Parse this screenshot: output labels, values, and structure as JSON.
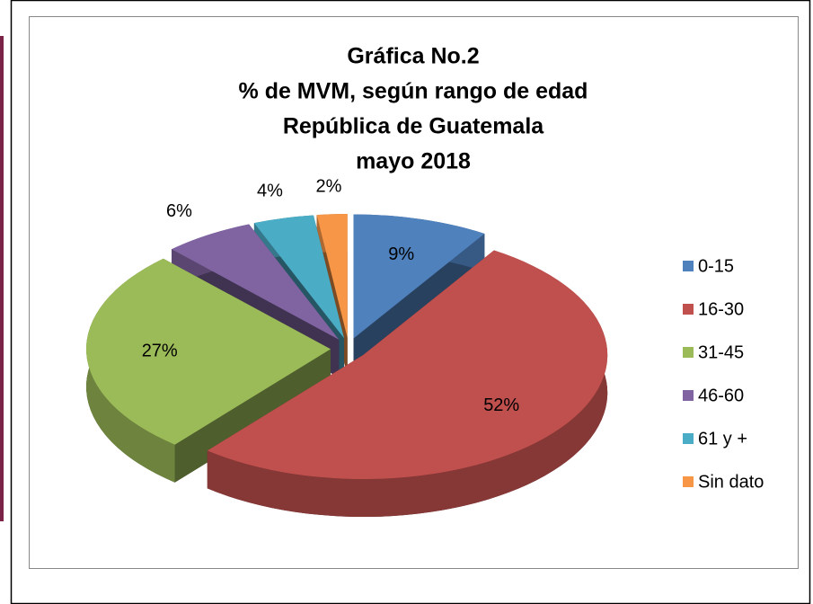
{
  "chart_data": {
    "type": "pie",
    "title": [
      "Gráfica No.2",
      "% de MVM, según rango de edad",
      "República de Guatemala",
      "mayo 2018"
    ],
    "categories": [
      "0-15",
      "16-30",
      "31-45",
      "46-60",
      "61 y +",
      "Sin dato"
    ],
    "values": [
      9,
      52,
      27,
      6,
      4,
      2
    ],
    "value_labels": [
      "9%",
      "52%",
      "27%",
      "6%",
      "4%",
      "2%"
    ],
    "colors": [
      "#4f81bd",
      "#c0504d",
      "#9bbb59",
      "#8064a2",
      "#4bacc6",
      "#f79646"
    ],
    "legend": "right"
  }
}
